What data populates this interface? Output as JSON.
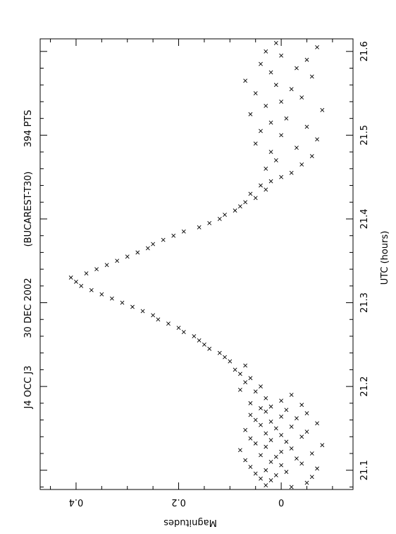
{
  "chart_data": {
    "type": "scatter",
    "title_parts": [
      "J4 OCC J3",
      "30 DEC 2002",
      "(BUCAREST-T30)",
      "394  PTS"
    ],
    "xlabel": "UTC (hours)",
    "ylabel": "Magnitudes",
    "xlim": [
      21.077,
      21.615
    ],
    "ylim": [
      -0.14,
      0.47
    ],
    "x_ticks": [
      "21.1",
      "21.2",
      "21.3",
      "21.4",
      "21.5",
      "21.6"
    ],
    "x_tick_values": [
      21.1,
      21.2,
      21.3,
      21.4,
      21.5,
      21.6
    ],
    "y_ticks": [
      "0",
      "0.2",
      "0.4"
    ],
    "y_tick_values": [
      0,
      0.2,
      0.4
    ],
    "marker": "x",
    "point_count": 394,
    "series": [
      {
        "points": [
          [
            21.08,
            -0.02
          ],
          [
            21.082,
            0.03
          ],
          [
            21.085,
            -0.05
          ],
          [
            21.088,
            0.02
          ],
          [
            21.09,
            0.04
          ],
          [
            21.092,
            -0.06
          ],
          [
            21.094,
            0.01
          ],
          [
            21.096,
            0.05
          ],
          [
            21.098,
            -0.01
          ],
          [
            21.1,
            0.03
          ],
          [
            21.102,
            -0.07
          ],
          [
            21.104,
            0.06
          ],
          [
            21.106,
            0.0
          ],
          [
            21.108,
            -0.04
          ],
          [
            21.11,
            0.02
          ],
          [
            21.112,
            0.07
          ],
          [
            21.114,
            -0.03
          ],
          [
            21.116,
            0.01
          ],
          [
            21.118,
            0.04
          ],
          [
            21.12,
            -0.06
          ],
          [
            21.122,
            0.0
          ],
          [
            21.124,
            0.08
          ],
          [
            21.126,
            -0.02
          ],
          [
            21.128,
            0.03
          ],
          [
            21.13,
            -0.08
          ],
          [
            21.132,
            0.05
          ],
          [
            21.134,
            -0.01
          ],
          [
            21.136,
            0.02
          ],
          [
            21.138,
            0.06
          ],
          [
            21.14,
            -0.04
          ],
          [
            21.142,
            0.0
          ],
          [
            21.144,
            0.03
          ],
          [
            21.146,
            -0.05
          ],
          [
            21.148,
            0.07
          ],
          [
            21.15,
            0.01
          ],
          [
            21.152,
            -0.02
          ],
          [
            21.154,
            0.04
          ],
          [
            21.156,
            -0.07
          ],
          [
            21.158,
            0.02
          ],
          [
            21.16,
            0.05
          ],
          [
            21.162,
            -0.03
          ],
          [
            21.164,
            0.0
          ],
          [
            21.166,
            0.06
          ],
          [
            21.168,
            -0.05
          ],
          [
            21.17,
            0.03
          ],
          [
            21.172,
            -0.01
          ],
          [
            21.174,
            0.04
          ],
          [
            21.176,
            0.02
          ],
          [
            21.178,
            -0.04
          ],
          [
            21.18,
            0.06
          ],
          [
            21.183,
            0.0
          ],
          [
            21.186,
            0.03
          ],
          [
            21.19,
            -0.02
          ],
          [
            21.194,
            0.05
          ],
          [
            21.196,
            0.08
          ],
          [
            21.2,
            0.04
          ],
          [
            21.205,
            0.07
          ],
          [
            21.21,
            0.06
          ],
          [
            21.215,
            0.08
          ],
          [
            21.22,
            0.09
          ],
          [
            21.225,
            0.07
          ],
          [
            21.23,
            0.1
          ],
          [
            21.235,
            0.11
          ],
          [
            21.24,
            0.12
          ],
          [
            21.245,
            0.14
          ],
          [
            21.25,
            0.15
          ],
          [
            21.255,
            0.16
          ],
          [
            21.26,
            0.17
          ],
          [
            21.265,
            0.19
          ],
          [
            21.27,
            0.2
          ],
          [
            21.275,
            0.22
          ],
          [
            21.28,
            0.24
          ],
          [
            21.285,
            0.25
          ],
          [
            21.29,
            0.27
          ],
          [
            21.295,
            0.29
          ],
          [
            21.3,
            0.31
          ],
          [
            21.305,
            0.33
          ],
          [
            21.31,
            0.35
          ],
          [
            21.315,
            0.37
          ],
          [
            21.32,
            0.39
          ],
          [
            21.325,
            0.4
          ],
          [
            21.33,
            0.41
          ],
          [
            21.335,
            0.38
          ],
          [
            21.34,
            0.36
          ],
          [
            21.345,
            0.34
          ],
          [
            21.35,
            0.32
          ],
          [
            21.355,
            0.3
          ],
          [
            21.36,
            0.28
          ],
          [
            21.365,
            0.26
          ],
          [
            21.37,
            0.25
          ],
          [
            21.375,
            0.23
          ],
          [
            21.38,
            0.21
          ],
          [
            21.385,
            0.19
          ],
          [
            21.39,
            0.16
          ],
          [
            21.395,
            0.14
          ],
          [
            21.4,
            0.12
          ],
          [
            21.405,
            0.11
          ],
          [
            21.41,
            0.09
          ],
          [
            21.415,
            0.08
          ],
          [
            21.42,
            0.07
          ],
          [
            21.425,
            0.05
          ],
          [
            21.43,
            0.06
          ],
          [
            21.435,
            0.03
          ],
          [
            21.44,
            0.04
          ],
          [
            21.445,
            0.02
          ],
          [
            21.45,
            0.0
          ],
          [
            21.455,
            -0.02
          ],
          [
            21.46,
            0.03
          ],
          [
            21.465,
            -0.04
          ],
          [
            21.47,
            0.01
          ],
          [
            21.475,
            -0.06
          ],
          [
            21.48,
            0.02
          ],
          [
            21.485,
            -0.03
          ],
          [
            21.49,
            0.05
          ],
          [
            21.495,
            -0.07
          ],
          [
            21.5,
            0.0
          ],
          [
            21.505,
            0.04
          ],
          [
            21.51,
            -0.05
          ],
          [
            21.515,
            0.02
          ],
          [
            21.52,
            -0.01
          ],
          [
            21.525,
            0.06
          ],
          [
            21.53,
            -0.08
          ],
          [
            21.535,
            0.03
          ],
          [
            21.54,
            0.0
          ],
          [
            21.545,
            -0.04
          ],
          [
            21.55,
            0.05
          ],
          [
            21.555,
            -0.02
          ],
          [
            21.56,
            0.01
          ],
          [
            21.565,
            0.07
          ],
          [
            21.57,
            -0.06
          ],
          [
            21.575,
            0.02
          ],
          [
            21.58,
            -0.03
          ],
          [
            21.585,
            0.04
          ],
          [
            21.59,
            -0.05
          ],
          [
            21.595,
            0.0
          ],
          [
            21.6,
            0.03
          ],
          [
            21.605,
            -0.07
          ],
          [
            21.61,
            0.01
          ]
        ]
      }
    ]
  }
}
